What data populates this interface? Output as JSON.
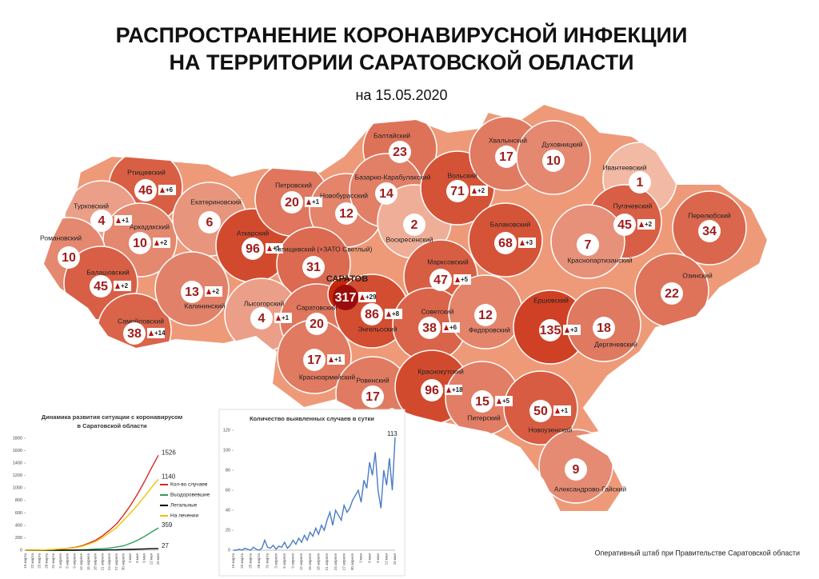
{
  "header": {
    "title_lines": [
      "РАСПРОСТРАНЕНИЕ КОРОНАВИРУСНОЙ ИНФЕКЦИИ",
      "НА ТЕРРИТОРИИ САРАТОВСКОЙ ОБЛАСТИ"
    ],
    "date": "на 15.05.2020"
  },
  "districts": [
    {
      "name": "Ртищевский",
      "cases": 46,
      "new": "+6"
    },
    {
      "name": "Турковский",
      "cases": 4,
      "new": "+1"
    },
    {
      "name": "Аркадакский",
      "cases": 10,
      "new": "+2"
    },
    {
      "name": "Романовский",
      "cases": 10
    },
    {
      "name": "Балашовский",
      "cases": 45,
      "new": "+2"
    },
    {
      "name": "Самойловский",
      "cases": 38,
      "new": "+14"
    },
    {
      "name": "Екатериновский",
      "cases": 6
    },
    {
      "name": "Калининский",
      "cases": 13,
      "new": "+2"
    },
    {
      "name": "Аткарский",
      "cases": 96,
      "new": "+1"
    },
    {
      "name": "Петровский",
      "cases": 20,
      "new": "+1"
    },
    {
      "name": "Новобурасский",
      "cases": 12
    },
    {
      "name": "Татищевский (+ЗАТО Светлый)",
      "cases": 31
    },
    {
      "name": "Лысогорский",
      "cases": 4,
      "new": "+1"
    },
    {
      "name": "Саратовский",
      "cases": 20
    },
    {
      "name": "САРАТОВ",
      "cases": 317,
      "new": "+29"
    },
    {
      "name": "Балтайский",
      "cases": 23
    },
    {
      "name": "Базарно-Карабулакский",
      "cases": 14
    },
    {
      "name": "Воскресенский",
      "cases": 2
    },
    {
      "name": "Вольский",
      "cases": 71,
      "new": "+2"
    },
    {
      "name": "Хвалынский",
      "cases": 17
    },
    {
      "name": "Духовницкий",
      "cases": 10
    },
    {
      "name": "Ивантеевский",
      "cases": 1
    },
    {
      "name": "Пугачевский",
      "cases": 45,
      "new": "+2"
    },
    {
      "name": "Перелюбский",
      "cases": 34
    },
    {
      "name": "Балаковский",
      "cases": 68,
      "new": "+3"
    },
    {
      "name": "Краснопартизанский",
      "cases": 7
    },
    {
      "name": "Марксовский",
      "cases": 47,
      "new": "+5"
    },
    {
      "name": "Энгельсский",
      "cases": 86,
      "new": "+8"
    },
    {
      "name": "Советский",
      "cases": 38,
      "new": "+6"
    },
    {
      "name": "Федоровский",
      "cases": 12
    },
    {
      "name": "Ершовский",
      "cases": 135,
      "new": "+3"
    },
    {
      "name": "Озинский",
      "cases": 22
    },
    {
      "name": "Дергачевский",
      "cases": 18
    },
    {
      "name": "Красноармейский",
      "cases": 17,
      "new": "+1"
    },
    {
      "name": "Ровенский",
      "cases": 17
    },
    {
      "name": "Краснокутский",
      "cases": 96,
      "new": "+18"
    },
    {
      "name": "Питерский",
      "cases": 15,
      "new": "+5"
    },
    {
      "name": "Новоузенский",
      "cases": 50,
      "new": "+1"
    },
    {
      "name": "Александрово-Гайский",
      "cases": 9
    }
  ],
  "chart_data": [
    {
      "type": "line",
      "title_lines": [
        "Динамика развития ситуации с коронавирусом",
        "в Саратовской области"
      ],
      "categories": [
        "19 марта",
        "22 марта",
        "25 марта",
        "28 марта",
        "31 марта",
        "3 апреля",
        "6 апреля",
        "9 апреля",
        "12 апреля",
        "15 апреля",
        "18 апреля",
        "21 апреля",
        "24 апреля",
        "27 апреля",
        "30 апреля",
        "3 мая",
        "6 мая",
        "9 мая",
        "12 мая",
        "15 мая"
      ],
      "series": [
        {
          "name": "Кол-во случаев",
          "color": "#d42a20",
          "values": [
            0,
            1,
            3,
            5,
            10,
            20,
            30,
            45,
            70,
            110,
            160,
            230,
            320,
            420,
            560,
            720,
            900,
            1100,
            1320,
            1526
          ]
        },
        {
          "name": "Выздоровевшие",
          "color": "#2ca05a",
          "values": [
            0,
            0,
            0,
            0,
            0,
            0,
            2,
            5,
            8,
            12,
            18,
            25,
            35,
            50,
            70,
            110,
            160,
            220,
            290,
            359
          ]
        },
        {
          "name": "Летальные",
          "color": "#000000",
          "values": [
            0,
            0,
            0,
            0,
            0,
            0,
            0,
            0,
            1,
            1,
            2,
            3,
            5,
            7,
            10,
            13,
            17,
            20,
            24,
            27
          ]
        },
        {
          "name": "На лечении",
          "color": "#f5c000",
          "values": [
            0,
            1,
            3,
            5,
            10,
            20,
            28,
            40,
            61,
            97,
            140,
            202,
            280,
            363,
            480,
            597,
            723,
            860,
            1006,
            1140
          ]
        }
      ],
      "ylim": [
        0,
        1800
      ],
      "yticks": [
        0,
        200,
        400,
        600,
        800,
        1000,
        1200,
        1400,
        1600,
        1800
      ],
      "legend": "right"
    },
    {
      "type": "line",
      "title_lines": [
        "Количество выявленных случаев в сутки"
      ],
      "categories": [
        "19 марта",
        null,
        null,
        "22 марта",
        null,
        null,
        "25 марта",
        null,
        null,
        "28 марта",
        null,
        null,
        "31 марта",
        null,
        null,
        "3 апреля",
        null,
        null,
        "6 апреля",
        null,
        null,
        "9 апреля",
        null,
        null,
        "12 апреля",
        null,
        null,
        "15 апреля",
        null,
        null,
        "18 апреля",
        null,
        null,
        "21 апреля",
        null,
        null,
        "24 апреля",
        null,
        null,
        "27 апреля",
        null,
        null,
        "30 апреля",
        null,
        null,
        "3 мая",
        null,
        null,
        "6 мая",
        null,
        null,
        "9 мая",
        null,
        null,
        "12 мая",
        null,
        null,
        "15 мая"
      ],
      "series": [
        {
          "color": "#4a7cc4",
          "values": [
            0,
            0,
            1,
            0,
            2,
            1,
            0,
            3,
            1,
            0,
            2,
            10,
            3,
            2,
            5,
            1,
            4,
            3,
            8,
            2,
            5,
            10,
            6,
            12,
            8,
            15,
            10,
            18,
            14,
            22,
            16,
            25,
            20,
            30,
            38,
            25,
            40,
            35,
            30,
            45,
            38,
            42,
            50,
            55,
            60,
            48,
            70,
            62,
            88,
            75,
            98,
            60,
            42,
            80,
            65,
            92,
            60,
            113
          ]
        }
      ],
      "ylim": [
        0,
        120
      ],
      "yticks": [
        0,
        20,
        40,
        60,
        80,
        100,
        120
      ]
    }
  ],
  "source": "Оперативный штаб при Правительстве Саратовской области"
}
